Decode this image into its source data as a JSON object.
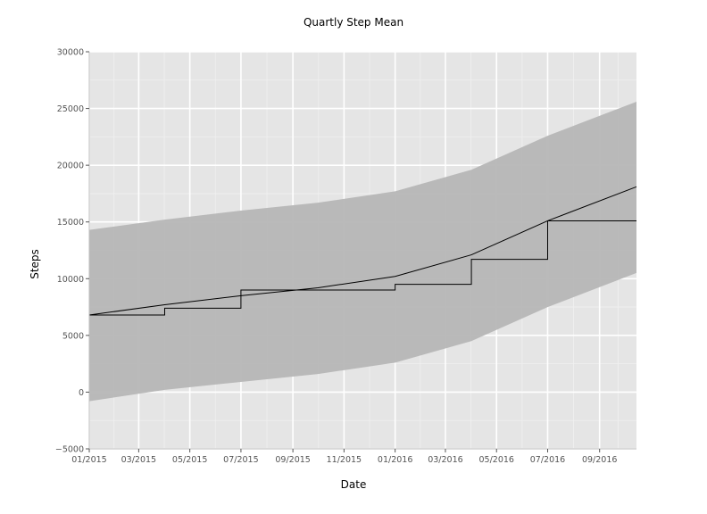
{
  "chart_data": {
    "type": "line",
    "title": "Quartly Step Mean",
    "xlabel": "Date",
    "ylabel": "Steps",
    "xlim": [
      "2015-01-01",
      "2016-10-15"
    ],
    "ylim": [
      -5000,
      30000
    ],
    "grid": true,
    "background": "#e5e5e5",
    "x_ticks": [
      "2015-01-01",
      "2015-03-01",
      "2015-05-01",
      "2015-07-01",
      "2015-09-01",
      "2015-11-01",
      "2016-01-01",
      "2016-03-01",
      "2016-05-01",
      "2016-07-01",
      "2016-09-01"
    ],
    "x_tick_labels": [
      "01/2015",
      "03/2015",
      "05/2015",
      "07/2015",
      "09/2015",
      "11/2015",
      "01/2016",
      "03/2016",
      "05/2016",
      "07/2016",
      "09/2016"
    ],
    "y_ticks": [
      -5000,
      0,
      5000,
      10000,
      15000,
      20000,
      25000,
      30000
    ],
    "y_tick_labels": [
      "−5000",
      "0",
      "5000",
      "10000",
      "15000",
      "20000",
      "25000",
      "30000"
    ],
    "series": [
      {
        "kind": "step",
        "color": "#000000",
        "x": [
          "2015-01-01",
          "2015-04-01",
          "2015-07-01",
          "2016-01-01",
          "2016-04-01",
          "2016-07-01"
        ],
        "values": [
          6800,
          7400,
          9000,
          9500,
          11700,
          15100
        ],
        "x_end": "2016-10-15"
      },
      {
        "kind": "smooth",
        "color": "#000000",
        "x": [
          "2015-01-01",
          "2015-04-01",
          "2015-07-01",
          "2015-10-01",
          "2016-01-01",
          "2016-04-01",
          "2016-07-01",
          "2016-10-15"
        ],
        "values": [
          6800,
          7700,
          8500,
          9200,
          10200,
          12100,
          15100,
          18100
        ]
      }
    ],
    "band": {
      "color": "#b6b6b6",
      "x": [
        "2015-01-01",
        "2015-04-01",
        "2015-07-01",
        "2015-10-01",
        "2016-01-01",
        "2016-04-01",
        "2016-07-01",
        "2016-10-15"
      ],
      "upper": [
        14300,
        15200,
        16000,
        16700,
        17700,
        19600,
        22600,
        25600
      ],
      "lower": [
        -800,
        200,
        900,
        1600,
        2600,
        4500,
        7500,
        10500
      ]
    }
  }
}
